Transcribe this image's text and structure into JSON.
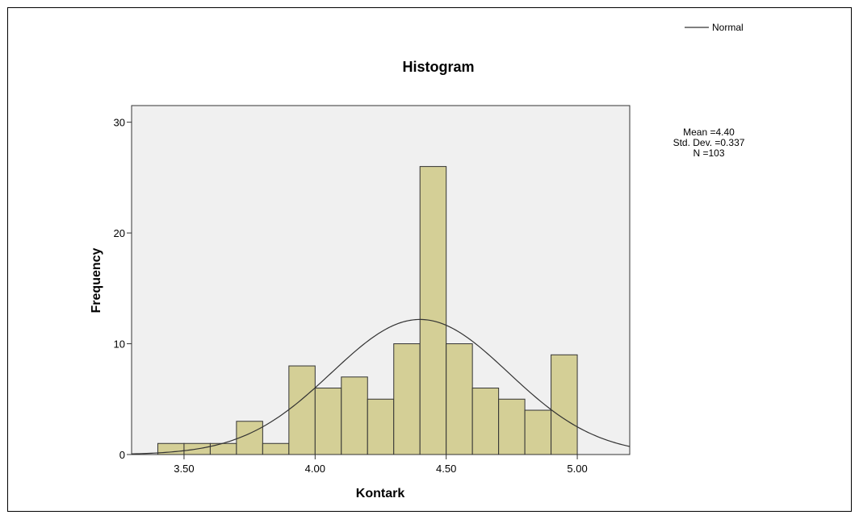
{
  "chart_data": {
    "type": "bar",
    "title": "Histogram",
    "xlabel": "Kontark",
    "ylabel": "Frequency",
    "xlim": [
      3.3,
      5.2
    ],
    "ylim": [
      0,
      31.5
    ],
    "bin_width": 0.1,
    "bins": [
      {
        "start": 3.4,
        "end": 3.5,
        "count": 1
      },
      {
        "start": 3.5,
        "end": 3.6,
        "count": 1
      },
      {
        "start": 3.6,
        "end": 3.7,
        "count": 1
      },
      {
        "start": 3.7,
        "end": 3.8,
        "count": 3
      },
      {
        "start": 3.8,
        "end": 3.9,
        "count": 1
      },
      {
        "start": 3.9,
        "end": 4.0,
        "count": 8
      },
      {
        "start": 4.0,
        "end": 4.1,
        "count": 6
      },
      {
        "start": 4.1,
        "end": 4.2,
        "count": 7
      },
      {
        "start": 4.2,
        "end": 4.3,
        "count": 5
      },
      {
        "start": 4.3,
        "end": 4.4,
        "count": 10
      },
      {
        "start": 4.4,
        "end": 4.5,
        "count": 26
      },
      {
        "start": 4.5,
        "end": 4.6,
        "count": 10
      },
      {
        "start": 4.6,
        "end": 4.7,
        "count": 6
      },
      {
        "start": 4.7,
        "end": 4.8,
        "count": 5
      },
      {
        "start": 4.8,
        "end": 4.9,
        "count": 4
      },
      {
        "start": 4.9,
        "end": 5.0,
        "count": 9
      }
    ],
    "x_ticks": [
      {
        "value": 3.5,
        "label": "3.50"
      },
      {
        "value": 4.0,
        "label": "4.00"
      },
      {
        "value": 4.5,
        "label": "4.50"
      },
      {
        "value": 5.0,
        "label": "5.00"
      }
    ],
    "y_ticks": [
      {
        "value": 0,
        "label": "0"
      },
      {
        "value": 10,
        "label": "10"
      },
      {
        "value": 20,
        "label": "20"
      },
      {
        "value": 30,
        "label": "30"
      }
    ],
    "normal_curve": {
      "name": "Normal",
      "mean": 4.4,
      "std_dev": 0.337,
      "n": 103
    },
    "stats_text": [
      "Mean =4.40",
      "Std. Dev. =0.337",
      "N =103"
    ],
    "legend": {
      "label": "Normal",
      "placement": "top-right"
    },
    "grid": false,
    "colors": {
      "bar_fill": "#d4cf96",
      "bar_stroke": "#333333",
      "plot_background": "#f0f0f0",
      "curve": "#333333"
    }
  }
}
